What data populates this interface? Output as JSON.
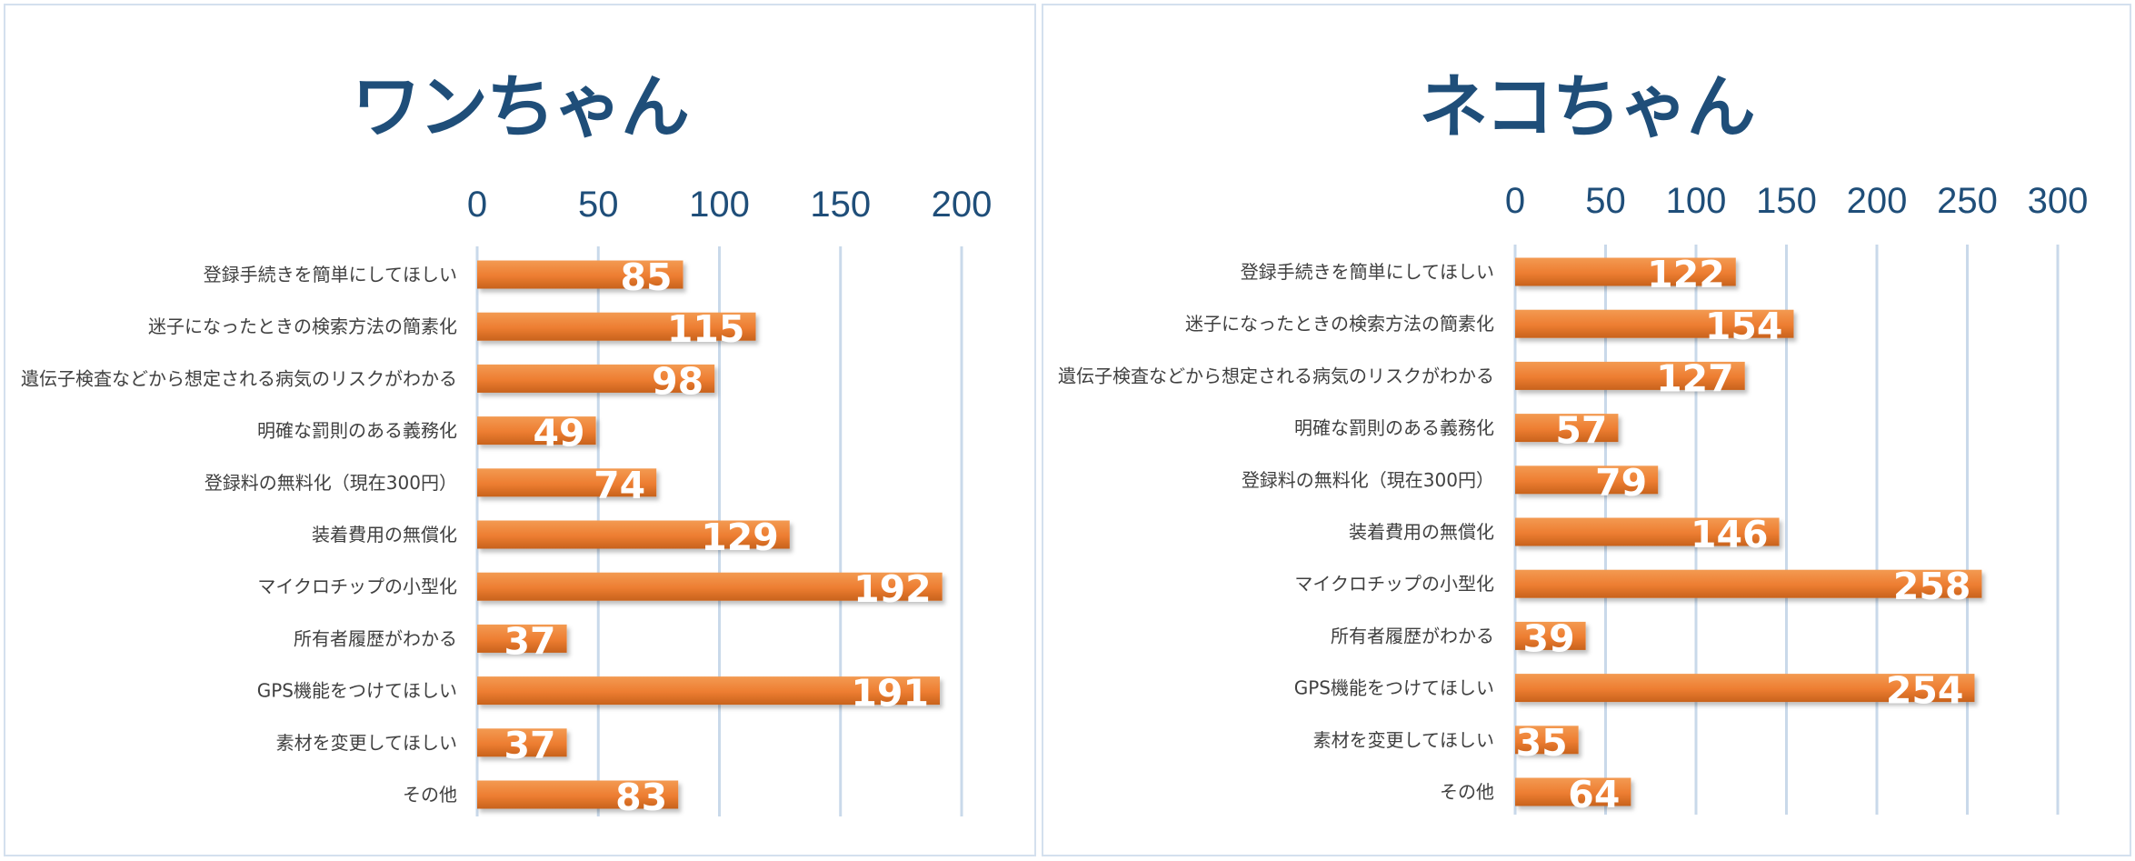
{
  "chart_data": [
    {
      "type": "bar",
      "orientation": "horizontal",
      "title": "ワンちゃん",
      "categories": [
        "登録手続きを簡単にしてほしい",
        "迷子になったときの検索方法の簡素化",
        "遺伝子検査などから想定される病気のリスクがわかる",
        "明確な罰則のある義務化",
        "登録料の無料化（現在300円）",
        "装着費用の無償化",
        "マイクロチップの小型化",
        "所有者履歴がわかる",
        "GPS機能をつけてほしい",
        "素材を変更してほしい",
        "その他"
      ],
      "values": [
        85,
        115,
        98,
        49,
        74,
        129,
        192,
        37,
        191,
        37,
        83
      ],
      "xlim": [
        0,
        200
      ],
      "ticks": [
        "0",
        "50",
        "100",
        "150",
        "200"
      ],
      "axis_position": "top",
      "grid": true,
      "bar_color": "#ED7D31",
      "label_color": "#ffffff"
    },
    {
      "type": "bar",
      "orientation": "horizontal",
      "title": "ネコちゃん",
      "categories": [
        "登録手続きを簡単にしてほしい",
        "迷子になったときの検索方法の簡素化",
        "遺伝子検査などから想定される病気のリスクがわかる",
        "明確な罰則のある義務化",
        "登録料の無料化（現在300円）",
        "装着費用の無償化",
        "マイクロチップの小型化",
        "所有者履歴がわかる",
        "GPS機能をつけてほしい",
        "素材を変更してほしい",
        "その他"
      ],
      "values": [
        122,
        154,
        127,
        57,
        79,
        146,
        258,
        39,
        254,
        35,
        64
      ],
      "xlim": [
        0,
        300
      ],
      "ticks": [
        "0",
        "50",
        "100",
        "150",
        "200",
        "250",
        "300"
      ],
      "axis_position": "top",
      "grid": true,
      "bar_color": "#ED7D31",
      "label_color": "#ffffff"
    }
  ]
}
